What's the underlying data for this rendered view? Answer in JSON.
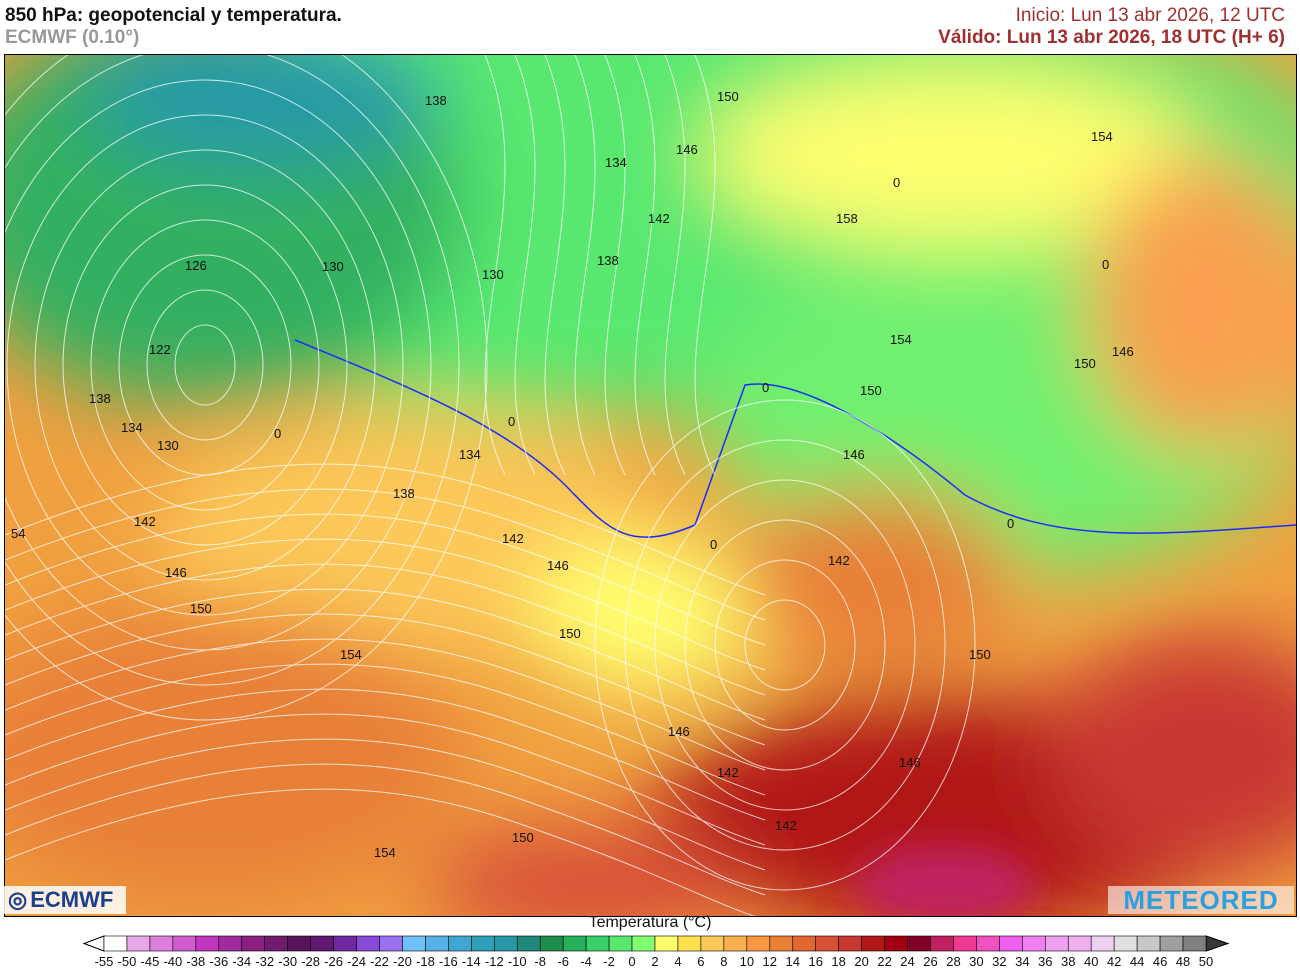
{
  "header": {
    "title": "850 hPa: geopotencial y temperatura.",
    "model": "ECMWF (0.10°)",
    "init": "Inicio: Lun 13 abr 2026, 12 UTC",
    "valid": "Válido: Lun 13 abr 2026, 18 UTC (H+ 6)"
  },
  "map": {
    "contour_labels": [
      "138",
      "150",
      "146",
      "134",
      "142",
      "138",
      "154",
      "158",
      "126",
      "130",
      "130",
      "122",
      "138",
      "134",
      "130",
      "0",
      "0",
      "134",
      "138",
      "154",
      "150",
      "146",
      "150",
      "146",
      "142",
      "142",
      "146",
      "0",
      "0",
      "0",
      "0",
      "0",
      "54",
      "142",
      "146",
      "150",
      "154",
      "150",
      "142",
      "150",
      "146",
      "142",
      "146",
      "150",
      "154"
    ]
  },
  "logos": {
    "left": "ECMWF",
    "right": "METEORED"
  },
  "colorbar": {
    "title": "Temperatura (°C)",
    "labels": [
      "-55",
      "-50",
      "-45",
      "-40",
      "-38",
      "-36",
      "-34",
      "-32",
      "-30",
      "-28",
      "-26",
      "-24",
      "-22",
      "-20",
      "-18",
      "-16",
      "-14",
      "-12",
      "-10",
      "-8",
      "-6",
      "-4",
      "-2",
      "0",
      "2",
      "4",
      "6",
      "8",
      "10",
      "12",
      "14",
      "16",
      "18",
      "20",
      "22",
      "24",
      "26",
      "28",
      "30",
      "32",
      "34",
      "36",
      "38",
      "40",
      "42",
      "44",
      "46",
      "48",
      "50"
    ],
    "colors": [
      "#ffffff",
      "#e6a8e6",
      "#dd80dd",
      "#d05cd0",
      "#c038c0",
      "#a02ca0",
      "#8a2080",
      "#701a70",
      "#581458",
      "#601870",
      "#7028a0",
      "#8848d8",
      "#9870f0",
      "#70c0f8",
      "#58b0e8",
      "#40a8d0",
      "#30a0b8",
      "#2898a8",
      "#208878",
      "#1e8c4a",
      "#28b058",
      "#38d068",
      "#58e870",
      "#80ff70",
      "#ffff70",
      "#ffe050",
      "#fcc858",
      "#f8b050",
      "#f89840",
      "#e88038",
      "#e06830",
      "#d85038",
      "#c83830",
      "#b01818",
      "#a00010",
      "#800028",
      "#c02060",
      "#f03890",
      "#f050c0",
      "#f060f0",
      "#f080f0",
      "#f0a0f0",
      "#f0b0f0",
      "#f0d0f0",
      "#e0e0e0",
      "#c8c8c8",
      "#a0a0a0",
      "#808080",
      "#585858"
    ],
    "below_color": "#ffffff",
    "above_color": "#383838"
  }
}
